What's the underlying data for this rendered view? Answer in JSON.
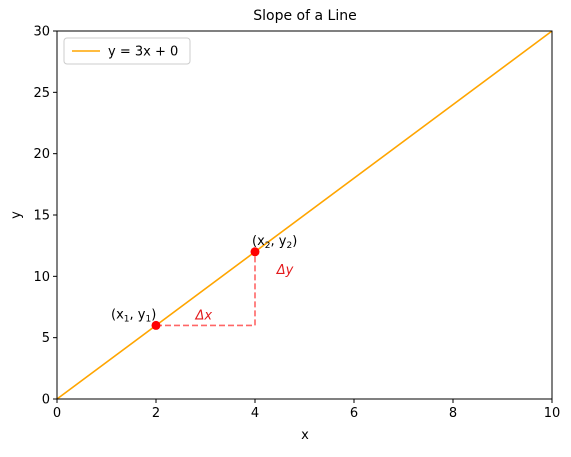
{
  "chart_data": {
    "type": "line",
    "title": "Slope of a Line",
    "xlabel": "x",
    "ylabel": "y",
    "xlim": [
      0,
      10
    ],
    "ylim": [
      0,
      30
    ],
    "xticks": [
      0,
      2,
      4,
      6,
      8,
      10
    ],
    "yticks": [
      0,
      5,
      10,
      15,
      20,
      25,
      30
    ],
    "xtick_labels": [
      "0",
      "2",
      "4",
      "6",
      "8",
      "10"
    ],
    "ytick_labels": [
      "0",
      "5",
      "10",
      "15",
      "20",
      "25",
      "30"
    ],
    "grid": false,
    "legend": {
      "placement": "top-left",
      "entries": [
        "y = 3x + 0"
      ]
    },
    "series": [
      {
        "name": "y = 3x + 0",
        "color": "#ffa500",
        "x": [
          0,
          10
        ],
        "y": [
          0,
          30
        ]
      }
    ],
    "points": [
      {
        "x": 2,
        "y": 6,
        "label_main": "(x",
        "label_sub": "1",
        "label_sep": ", y",
        "label_sub2": "1",
        "label_end": ")",
        "color": "#ff0000"
      },
      {
        "x": 4,
        "y": 12,
        "label_main": "(x",
        "label_sub": "2",
        "label_sep": ", y",
        "label_sub2": "2",
        "label_end": ")",
        "color": "#ff0000"
      }
    ],
    "delta_lines": {
      "color": "#ff6666",
      "horizontal": {
        "x": [
          2,
          4
        ],
        "y": 6
      },
      "vertical": {
        "x": 4,
        "y": [
          6,
          12
        ]
      }
    },
    "annotations": {
      "delta_x": {
        "text": "Δx",
        "x": 3,
        "y": 6.5
      },
      "delta_y": {
        "text": "Δy",
        "x": 4.6,
        "y": 10.2
      }
    }
  }
}
